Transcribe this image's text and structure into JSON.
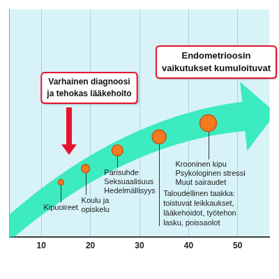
{
  "chart_data": {
    "type": "bubble",
    "x": [
      14,
      19,
      25.5,
      34,
      44
    ],
    "values": [
      24,
      30,
      38,
      44,
      50
    ],
    "sizes": [
      4,
      6,
      8,
      10,
      12
    ],
    "point_labels": [
      [
        "Kipuoireet"
      ],
      [
        "Koulu ja",
        "opiskelu"
      ],
      [
        "Parisuhde",
        "Seksuaalisuus",
        "Hedelmällisyys"
      ],
      [
        "Taloudellinen taakka:",
        "toistuvat leikkaukset,",
        "lääkehoidot, työtehon",
        "lasku, poissaolot"
      ],
      [
        "Krooninen kipu",
        "Psykologinen stressi",
        "Muut sairaudet"
      ]
    ],
    "color": "#f47b20",
    "xlim": [
      3.5,
      56.5
    ],
    "xticks": [
      10,
      20,
      30,
      40,
      50
    ],
    "ylim": [
      0,
      100
    ],
    "tick_labels": "x",
    "grid": true,
    "annotations": [
      {
        "text": [
          "Varhainen diagnoosi",
          "ja tehokas lääkehoito"
        ]
      },
      {
        "text": [
          "Endometrioosin",
          "vaikutukset kumuloituvat"
        ]
      }
    ]
  }
}
